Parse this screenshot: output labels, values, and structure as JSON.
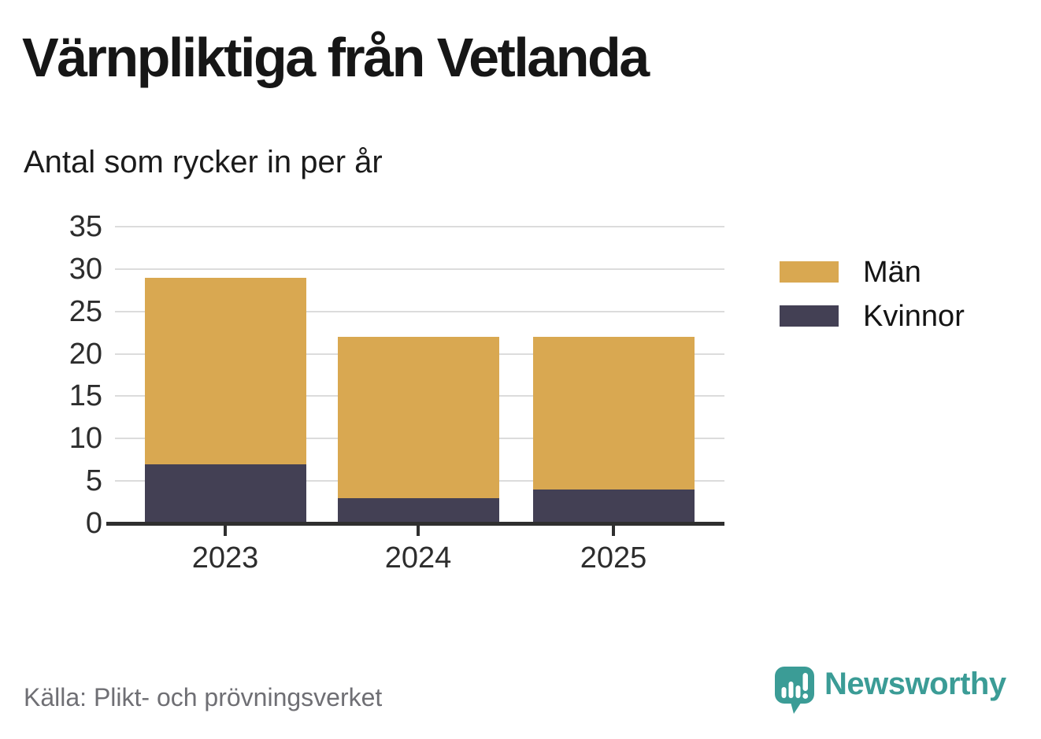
{
  "header": {
    "title": "Värnpliktiga från Vetlanda",
    "subtitle": "Antal som rycker in per år"
  },
  "chart_data": {
    "type": "bar",
    "stacked": true,
    "title": "Värnpliktiga från Vetlanda",
    "subtitle": "Antal som rycker in per år",
    "categories": [
      "2023",
      "2024",
      "2025"
    ],
    "series": [
      {
        "name": "Män",
        "color": "#D9A851",
        "values": [
          22,
          19,
          18
        ]
      },
      {
        "name": "Kvinnor",
        "color": "#434054",
        "values": [
          7,
          3,
          4
        ]
      }
    ],
    "stack_bottom_to_top": [
      "Kvinnor",
      "Män"
    ],
    "stack_totals": [
      29,
      22,
      22
    ],
    "xlabel": "",
    "ylabel": "",
    "ylim": [
      0,
      35
    ],
    "yticks": [
      0,
      5,
      10,
      15,
      20,
      25,
      30,
      35
    ],
    "grid": "horizontal-light",
    "legend_position": "right"
  },
  "legend": {
    "items": [
      {
        "label": "Män",
        "color": "#D9A851"
      },
      {
        "label": "Kvinnor",
        "color": "#434054"
      }
    ]
  },
  "footer": {
    "source": "Källa: Plikt- och prövningsverket"
  },
  "brand": {
    "name": "Newsworthy",
    "color": "#3B9C96",
    "icon": "speech-bubble-bar-chart-exclamation-icon"
  },
  "colors": {
    "grid": "#dcdcdc",
    "axis": "#2f2f2f",
    "bar_men": "#D9A851",
    "bar_women": "#434054",
    "text_dark": "#161616",
    "text_gray": "#6f6f74",
    "brand_teal": "#3B9C96"
  }
}
